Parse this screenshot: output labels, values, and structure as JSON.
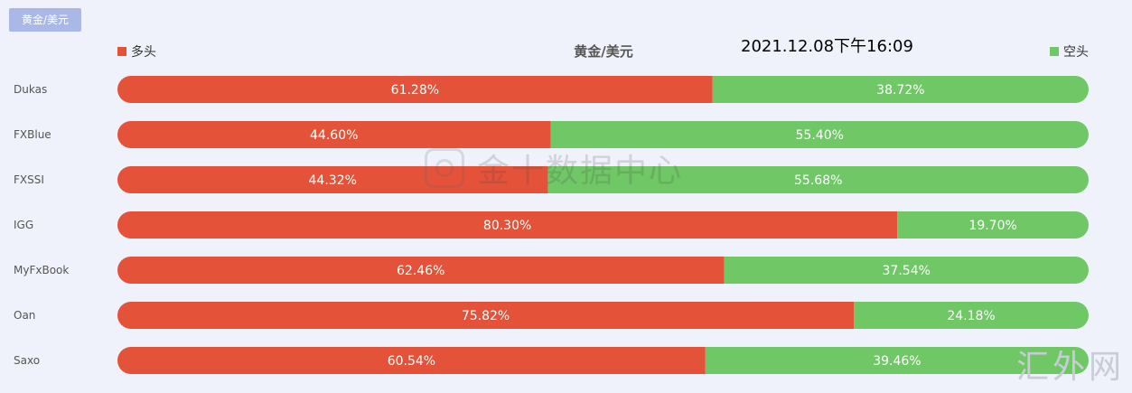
{
  "tab": {
    "label": "黄金/美元"
  },
  "legend": {
    "long_label": "多头",
    "short_label": "空头",
    "long_color": "#e4523a",
    "short_color": "#70c766"
  },
  "timestamp": "2021.12.08下午16:09",
  "watermark": {
    "center_text": "金十数据中心",
    "corner_text": "汇外网"
  },
  "chart_data": {
    "type": "bar",
    "orientation": "horizontal",
    "stacked": true,
    "percent_stacked": true,
    "title": "黄金/美元",
    "categories": [
      "Dukas",
      "FXBlue",
      "FXSSI",
      "IGG",
      "MyFxBook",
      "Oan",
      "Saxo"
    ],
    "series": [
      {
        "name": "多头",
        "color": "#e4523a",
        "values": [
          61.28,
          44.6,
          44.32,
          80.3,
          62.46,
          75.82,
          60.54
        ],
        "labels": [
          "61.28%",
          "44.60%",
          "44.32%",
          "80.30%",
          "62.46%",
          "75.82%",
          "60.54%"
        ]
      },
      {
        "name": "空头",
        "color": "#70c766",
        "values": [
          38.72,
          55.4,
          55.68,
          19.7,
          37.54,
          24.18,
          39.46
        ],
        "labels": [
          "38.72%",
          "55.40%",
          "55.68%",
          "19.70%",
          "37.54%",
          "24.18%",
          "39.46%"
        ]
      }
    ],
    "xlim": [
      0,
      100
    ],
    "legend_position": "top",
    "grid": false
  }
}
